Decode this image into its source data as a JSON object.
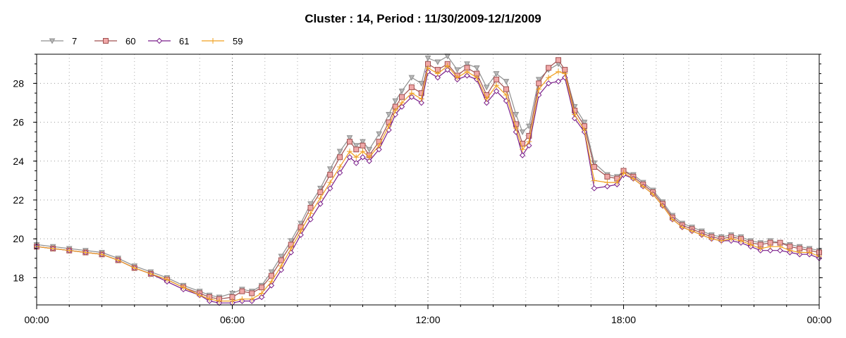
{
  "chart_data": {
    "type": "line",
    "title": "Cluster : 14, Period : 11/30/2009-12/1/2009",
    "xlabel": "",
    "ylabel": "",
    "x_unit": "hours",
    "xlim": [
      0,
      24
    ],
    "ylim": [
      16.6,
      29.5
    ],
    "x_ticks": [
      {
        "value": 0,
        "label": "00:00"
      },
      {
        "value": 6,
        "label": "06:00"
      },
      {
        "value": 12,
        "label": "12:00"
      },
      {
        "value": 18,
        "label": "18:00"
      },
      {
        "value": 24,
        "label": "00:00"
      }
    ],
    "y_ticks": [
      18,
      20,
      22,
      24,
      26,
      28
    ],
    "grid": true,
    "legend_position": "top-left",
    "series": [
      {
        "name": "7",
        "color": "#909090",
        "marker": "triangle-down",
        "x": [
          0,
          0.5,
          1,
          1.5,
          2,
          2.5,
          3,
          3.5,
          4,
          4.5,
          5,
          5.3,
          5.6,
          6,
          6.3,
          6.6,
          6.9,
          7.2,
          7.5,
          7.8,
          8.1,
          8.4,
          8.7,
          9,
          9.3,
          9.6,
          9.8,
          10,
          10.2,
          10.5,
          10.8,
          11,
          11.2,
          11.5,
          11.8,
          12,
          12.3,
          12.6,
          12.9,
          13.2,
          13.5,
          13.8,
          14.1,
          14.4,
          14.7,
          14.9,
          15.1,
          15.4,
          15.7,
          16,
          16.2,
          16.5,
          16.8,
          17.1,
          17.5,
          17.8,
          18,
          18.3,
          18.6,
          18.9,
          19.2,
          19.5,
          19.8,
          20.1,
          20.4,
          20.7,
          21,
          21.3,
          21.6,
          21.9,
          22.2,
          22.5,
          22.8,
          23.1,
          23.4,
          23.7,
          24
        ],
        "y": [
          19.7,
          19.6,
          19.5,
          19.4,
          19.3,
          19.0,
          18.6,
          18.3,
          18.0,
          17.6,
          17.3,
          17.1,
          17.0,
          17.2,
          17.4,
          17.3,
          17.6,
          18.3,
          19.1,
          19.9,
          20.8,
          21.8,
          22.6,
          23.6,
          24.5,
          25.2,
          24.8,
          25.0,
          24.6,
          25.4,
          26.4,
          27.1,
          27.6,
          28.3,
          28.0,
          29.3,
          29.1,
          29.4,
          28.7,
          29.0,
          28.8,
          27.8,
          28.5,
          28.1,
          26.4,
          25.5,
          25.8,
          28.2,
          28.7,
          29.0,
          28.6,
          26.8,
          26.0,
          23.9,
          23.3,
          23.2,
          23.5,
          23.3,
          22.9,
          22.5,
          21.9,
          21.2,
          20.8,
          20.6,
          20.4,
          20.2,
          20.1,
          20.2,
          20.1,
          19.9,
          19.8,
          19.9,
          19.8,
          19.7,
          19.6,
          19.5,
          19.4
        ]
      },
      {
        "name": "60",
        "color": "#a05050",
        "marker": "square",
        "x": [
          0,
          0.5,
          1,
          1.5,
          2,
          2.5,
          3,
          3.5,
          4,
          4.5,
          5,
          5.3,
          5.6,
          6,
          6.3,
          6.6,
          6.9,
          7.2,
          7.5,
          7.8,
          8.1,
          8.4,
          8.7,
          9,
          9.3,
          9.6,
          9.8,
          10,
          10.2,
          10.5,
          10.8,
          11,
          11.2,
          11.5,
          11.8,
          12,
          12.3,
          12.6,
          12.9,
          13.2,
          13.5,
          13.8,
          14.1,
          14.4,
          14.7,
          14.9,
          15.1,
          15.4,
          15.7,
          16,
          16.2,
          16.5,
          16.8,
          17.1,
          17.5,
          17.8,
          18,
          18.3,
          18.6,
          18.9,
          19.2,
          19.5,
          19.8,
          20.1,
          20.4,
          20.7,
          21,
          21.3,
          21.6,
          21.9,
          22.2,
          22.5,
          22.8,
          23.1,
          23.4,
          23.7,
          24
        ],
        "y": [
          19.6,
          19.5,
          19.4,
          19.3,
          19.2,
          18.9,
          18.5,
          18.2,
          17.9,
          17.5,
          17.2,
          17.0,
          16.9,
          17.0,
          17.3,
          17.2,
          17.5,
          18.1,
          18.9,
          19.7,
          20.6,
          21.6,
          22.4,
          23.3,
          24.2,
          25.0,
          24.6,
          24.8,
          24.3,
          25.0,
          26.0,
          26.8,
          27.3,
          27.8,
          27.5,
          29.0,
          28.7,
          29.0,
          28.4,
          28.8,
          28.5,
          27.4,
          28.2,
          27.7,
          25.9,
          24.9,
          25.3,
          28.0,
          28.8,
          29.2,
          28.7,
          26.6,
          25.8,
          23.7,
          23.2,
          23.1,
          23.5,
          23.2,
          22.8,
          22.4,
          21.8,
          21.1,
          20.7,
          20.5,
          20.3,
          20.1,
          20.0,
          20.1,
          20.0,
          19.8,
          19.7,
          19.8,
          19.8,
          19.6,
          19.5,
          19.4,
          19.3
        ]
      },
      {
        "name": "61",
        "color": "#7a1f8a",
        "marker": "diamond",
        "x": [
          0,
          0.5,
          1,
          1.5,
          2,
          2.5,
          3,
          3.5,
          4,
          4.5,
          5,
          5.3,
          5.6,
          6,
          6.3,
          6.6,
          6.9,
          7.2,
          7.5,
          7.8,
          8.1,
          8.4,
          8.7,
          9,
          9.3,
          9.6,
          9.8,
          10,
          10.2,
          10.5,
          10.8,
          11,
          11.2,
          11.5,
          11.8,
          12,
          12.3,
          12.6,
          12.9,
          13.2,
          13.5,
          13.8,
          14.1,
          14.4,
          14.7,
          14.9,
          15.1,
          15.4,
          15.7,
          16,
          16.2,
          16.5,
          16.8,
          17.1,
          17.5,
          17.8,
          18,
          18.3,
          18.6,
          18.9,
          19.2,
          19.5,
          19.8,
          20.1,
          20.4,
          20.7,
          21,
          21.3,
          21.6,
          21.9,
          22.2,
          22.5,
          22.8,
          23.1,
          23.4,
          23.7,
          24
        ],
        "y": [
          19.6,
          19.5,
          19.4,
          19.3,
          19.2,
          18.9,
          18.5,
          18.2,
          17.8,
          17.4,
          17.1,
          16.8,
          16.7,
          16.7,
          16.8,
          16.8,
          17.0,
          17.6,
          18.4,
          19.3,
          20.2,
          21.0,
          21.8,
          22.6,
          23.4,
          24.2,
          23.9,
          24.2,
          24.0,
          24.6,
          25.6,
          26.4,
          26.8,
          27.3,
          27.0,
          28.6,
          28.3,
          28.7,
          28.2,
          28.4,
          28.2,
          27.0,
          27.6,
          27.1,
          25.5,
          24.3,
          24.8,
          27.4,
          28.0,
          28.1,
          28.3,
          26.2,
          25.5,
          22.6,
          22.7,
          22.8,
          23.3,
          23.1,
          22.7,
          22.3,
          21.7,
          21.0,
          20.6,
          20.4,
          20.2,
          20.0,
          19.9,
          19.9,
          19.8,
          19.6,
          19.4,
          19.4,
          19.4,
          19.3,
          19.2,
          19.2,
          19.0
        ]
      },
      {
        "name": "59",
        "color": "#f0a020",
        "marker": "plus",
        "x": [
          0,
          0.5,
          1,
          1.5,
          2,
          2.5,
          3,
          3.5,
          4,
          4.5,
          5,
          5.3,
          5.6,
          6,
          6.3,
          6.6,
          6.9,
          7.2,
          7.5,
          7.8,
          8.1,
          8.4,
          8.7,
          9,
          9.3,
          9.6,
          9.8,
          10,
          10.2,
          10.5,
          10.8,
          11,
          11.2,
          11.5,
          11.8,
          12,
          12.3,
          12.6,
          12.9,
          13.2,
          13.5,
          13.8,
          14.1,
          14.4,
          14.7,
          14.9,
          15.1,
          15.4,
          15.7,
          16,
          16.2,
          16.5,
          16.8,
          17.1,
          17.5,
          17.8,
          18,
          18.3,
          18.6,
          18.9,
          19.2,
          19.5,
          19.8,
          20.1,
          20.4,
          20.7,
          21,
          21.3,
          21.6,
          21.9,
          22.2,
          22.5,
          22.8,
          23.1,
          23.4,
          23.7,
          24
        ],
        "y": [
          19.6,
          19.5,
          19.4,
          19.3,
          19.2,
          18.9,
          18.5,
          18.2,
          17.9,
          17.5,
          17.1,
          16.9,
          16.8,
          16.8,
          16.9,
          16.9,
          17.2,
          17.8,
          18.6,
          19.5,
          20.4,
          21.3,
          22.1,
          22.9,
          23.7,
          24.5,
          24.2,
          24.5,
          24.2,
          24.8,
          25.8,
          26.6,
          27.0,
          27.5,
          27.2,
          28.8,
          28.5,
          28.9,
          28.3,
          28.6,
          28.3,
          27.2,
          27.9,
          27.4,
          25.7,
          24.6,
          25.0,
          27.7,
          28.3,
          28.6,
          28.5,
          26.4,
          25.6,
          23.0,
          22.9,
          22.9,
          23.4,
          23.1,
          22.7,
          22.3,
          21.7,
          21.0,
          20.6,
          20.4,
          20.2,
          20.0,
          19.9,
          20.0,
          19.9,
          19.7,
          19.5,
          19.6,
          19.6,
          19.4,
          19.3,
          19.3,
          19.1
        ]
      }
    ]
  }
}
